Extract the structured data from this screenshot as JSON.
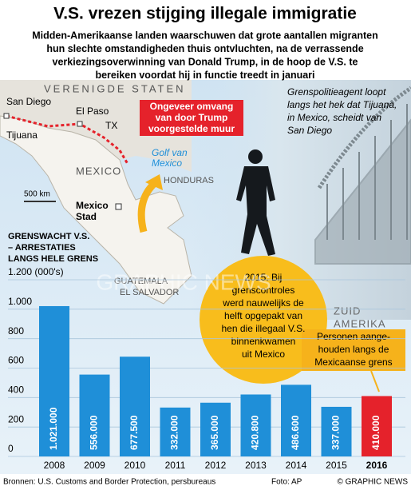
{
  "title": "V.S. vrezen stijging illegale immigratie",
  "subtitle_lines": [
    "Midden-Amerikaanse landen waarschuwen dat grote aantallen migranten",
    "hun slechte omstandigheden thuis ontvluchten, na de verrassende",
    "verkiezingsoverwinning van Donald Trump, in de hoop de V.S. te",
    "bereiken voordat hij in functie treedt in januari"
  ],
  "map_labels": {
    "usa": "VERENIGDE STATEN",
    "san_diego": "San Diego",
    "el_paso": "El Paso",
    "tx": "TX",
    "tijuana": "Tijuana",
    "mexico": "MEXICO",
    "gulf_lines": [
      "Golf van",
      "Mexico"
    ],
    "honduras": "HONDURAS",
    "mexico_city_lines": [
      "Mexico",
      "Stad"
    ],
    "guatemala": "GUATEMALA",
    "el_salvador": "EL SALVADOR",
    "south_america_lines": [
      "ZUID",
      "AMERIKA"
    ],
    "scale": "500 km"
  },
  "wall_callout_lines": [
    "Ongeveer omvang",
    "van door Trump",
    "voorgestelde muur"
  ],
  "photo_caption_lines": [
    "Grenspolitieagent loopt",
    "langs het hek dat Tijuana,",
    "in Mexico, scheidt van",
    "San Diego"
  ],
  "note_2015_lines": [
    "2015: Bij",
    "grenscontroles",
    "werd nauwelijks de",
    "helft opgepakt van",
    "hen die illegaal V.S.",
    "binnenkwamen",
    "uit Mexico"
  ],
  "note_persons_lines": [
    "Personen aange-",
    "houden langs de",
    "Mexicaanse grens"
  ],
  "watermark": "GRAPHIC NEWS",
  "source": "Bronnen: U.S. Customs and Border Protection, persbureaus",
  "photo_credit": "Foto: AP",
  "copyright": "© GRAPHIC NEWS",
  "chart_data": {
    "type": "bar",
    "title_lines": [
      "GRENSWACHT V.S.",
      "– ARRESTATIES",
      "LANGS HELE GRENS"
    ],
    "categories": [
      "2008",
      "2009",
      "2010",
      "2011",
      "2012",
      "2013",
      "2014",
      "2015",
      "2016"
    ],
    "values": [
      1021,
      556,
      677.5,
      332,
      365,
      420.8,
      486.6,
      337,
      410
    ],
    "value_labels": [
      "1.021.000",
      "556.000",
      "677.500",
      "332.000",
      "365.000",
      "420.800",
      "486.600",
      "337.000",
      "410.000"
    ],
    "colors": [
      "#1f8fd8",
      "#1f8fd8",
      "#1f8fd8",
      "#1f8fd8",
      "#1f8fd8",
      "#1f8fd8",
      "#1f8fd8",
      "#1f8fd8",
      "#e5222b"
    ],
    "ylim": [
      0,
      1200
    ],
    "yticks": [
      0,
      200,
      400,
      600,
      800,
      {
        "value": 1000,
        "label": "1.000"
      },
      {
        "value": 1200,
        "label": "1.200 (000's)"
      }
    ],
    "grid": true
  }
}
